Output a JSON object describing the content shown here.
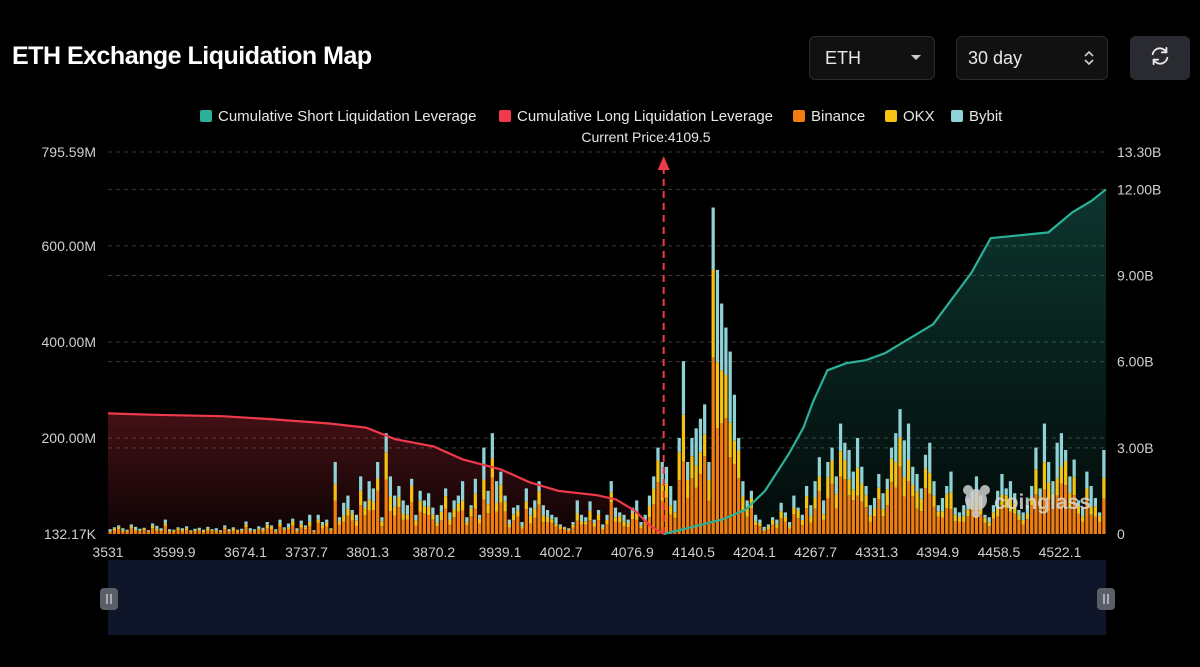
{
  "header": {
    "title": "ETH Exchange Liquidation Map",
    "asset_select": "ETH",
    "range_select": "30 day",
    "refresh_icon": "refresh-icon"
  },
  "colors": {
    "short": "#2bb199",
    "long": "#f03a4b",
    "binance": "#f07d0e",
    "okx": "#f5c211",
    "bybit": "#8fd3d6",
    "grid": "#3a3a3a"
  },
  "chart_data": {
    "type": "bar",
    "legend": [
      "Cumulative Short Liquidation Leverage",
      "Cumulative Long Liquidation Leverage",
      "Binance",
      "OKX",
      "Bybit"
    ],
    "current_price_label": "Current Price:4109.5",
    "current_price": 4109.5,
    "x_range": [
      3531,
      4570
    ],
    "x_ticks": [
      "3531",
      "3599.9",
      "3674.1",
      "3737.7",
      "3801.3",
      "3870.2",
      "3939.1",
      "4002.7",
      "4076.9",
      "4140.5",
      "4204.1",
      "4267.7",
      "4331.3",
      "4394.9",
      "4458.5",
      "4522.1"
    ],
    "y_left_labels": [
      "795.59M",
      "600.00M",
      "400.00M",
      "200.00M",
      "132.17K"
    ],
    "y_left_values_M": [
      795.59,
      600,
      400,
      200,
      0.13217
    ],
    "y_left_range_M": [
      0,
      795.59
    ],
    "y_right_labels": [
      "13.30B",
      "12.00B",
      "9.00B",
      "6.00B",
      "3.00B",
      "0"
    ],
    "y_right_values_B": [
      13.3,
      12,
      9,
      6,
      3,
      0
    ],
    "y_right_range_B": [
      0,
      13.3
    ],
    "watermark": "coinglass",
    "bars_total_M": [
      10,
      14,
      18,
      12,
      9,
      20,
      15,
      11,
      13,
      8,
      22,
      17,
      12,
      30,
      10,
      9,
      14,
      12,
      16,
      8,
      11,
      13,
      9,
      15,
      10,
      12,
      8,
      18,
      10,
      14,
      9,
      11,
      26,
      12,
      10,
      16,
      13,
      25,
      18,
      10,
      30,
      14,
      22,
      32,
      12,
      28,
      18,
      40,
      8,
      40,
      25,
      30,
      12,
      150,
      35,
      65,
      80,
      50,
      40,
      120,
      68,
      110,
      95,
      150,
      35,
      210,
      120,
      80,
      100,
      70,
      60,
      115,
      40,
      90,
      70,
      85,
      55,
      40,
      60,
      95,
      45,
      70,
      80,
      110,
      35,
      60,
      115,
      40,
      180,
      90,
      210,
      110,
      130,
      80,
      30,
      55,
      60,
      25,
      95,
      55,
      70,
      110,
      60,
      50,
      40,
      35,
      20,
      15,
      12,
      25,
      70,
      40,
      35,
      68,
      30,
      50,
      20,
      40,
      110,
      55,
      45,
      40,
      30,
      55,
      70,
      25,
      40,
      80,
      120,
      180,
      150,
      140,
      100,
      70,
      200,
      360,
      150,
      200,
      220,
      240,
      270,
      150,
      680,
      550,
      480,
      430,
      380,
      290,
      200,
      110,
      70,
      90,
      40,
      30,
      15,
      20,
      35,
      30,
      65,
      45,
      25,
      80,
      55,
      40,
      100,
      60,
      110,
      160,
      70,
      150,
      180,
      120,
      230,
      190,
      175,
      130,
      200,
      140,
      100,
      60,
      75,
      125,
      85,
      115,
      180,
      210,
      260,
      195,
      230,
      140,
      125,
      95,
      165,
      190,
      110,
      60,
      75,
      100,
      130,
      55,
      45,
      60,
      75,
      90,
      120,
      80,
      40,
      35,
      60,
      90,
      125,
      95,
      110,
      85,
      50,
      45,
      60,
      100,
      180,
      95,
      230,
      150,
      110,
      190,
      210,
      175,
      120,
      155,
      70,
      55,
      130,
      100,
      75,
      45,
      175
    ]
  }
}
